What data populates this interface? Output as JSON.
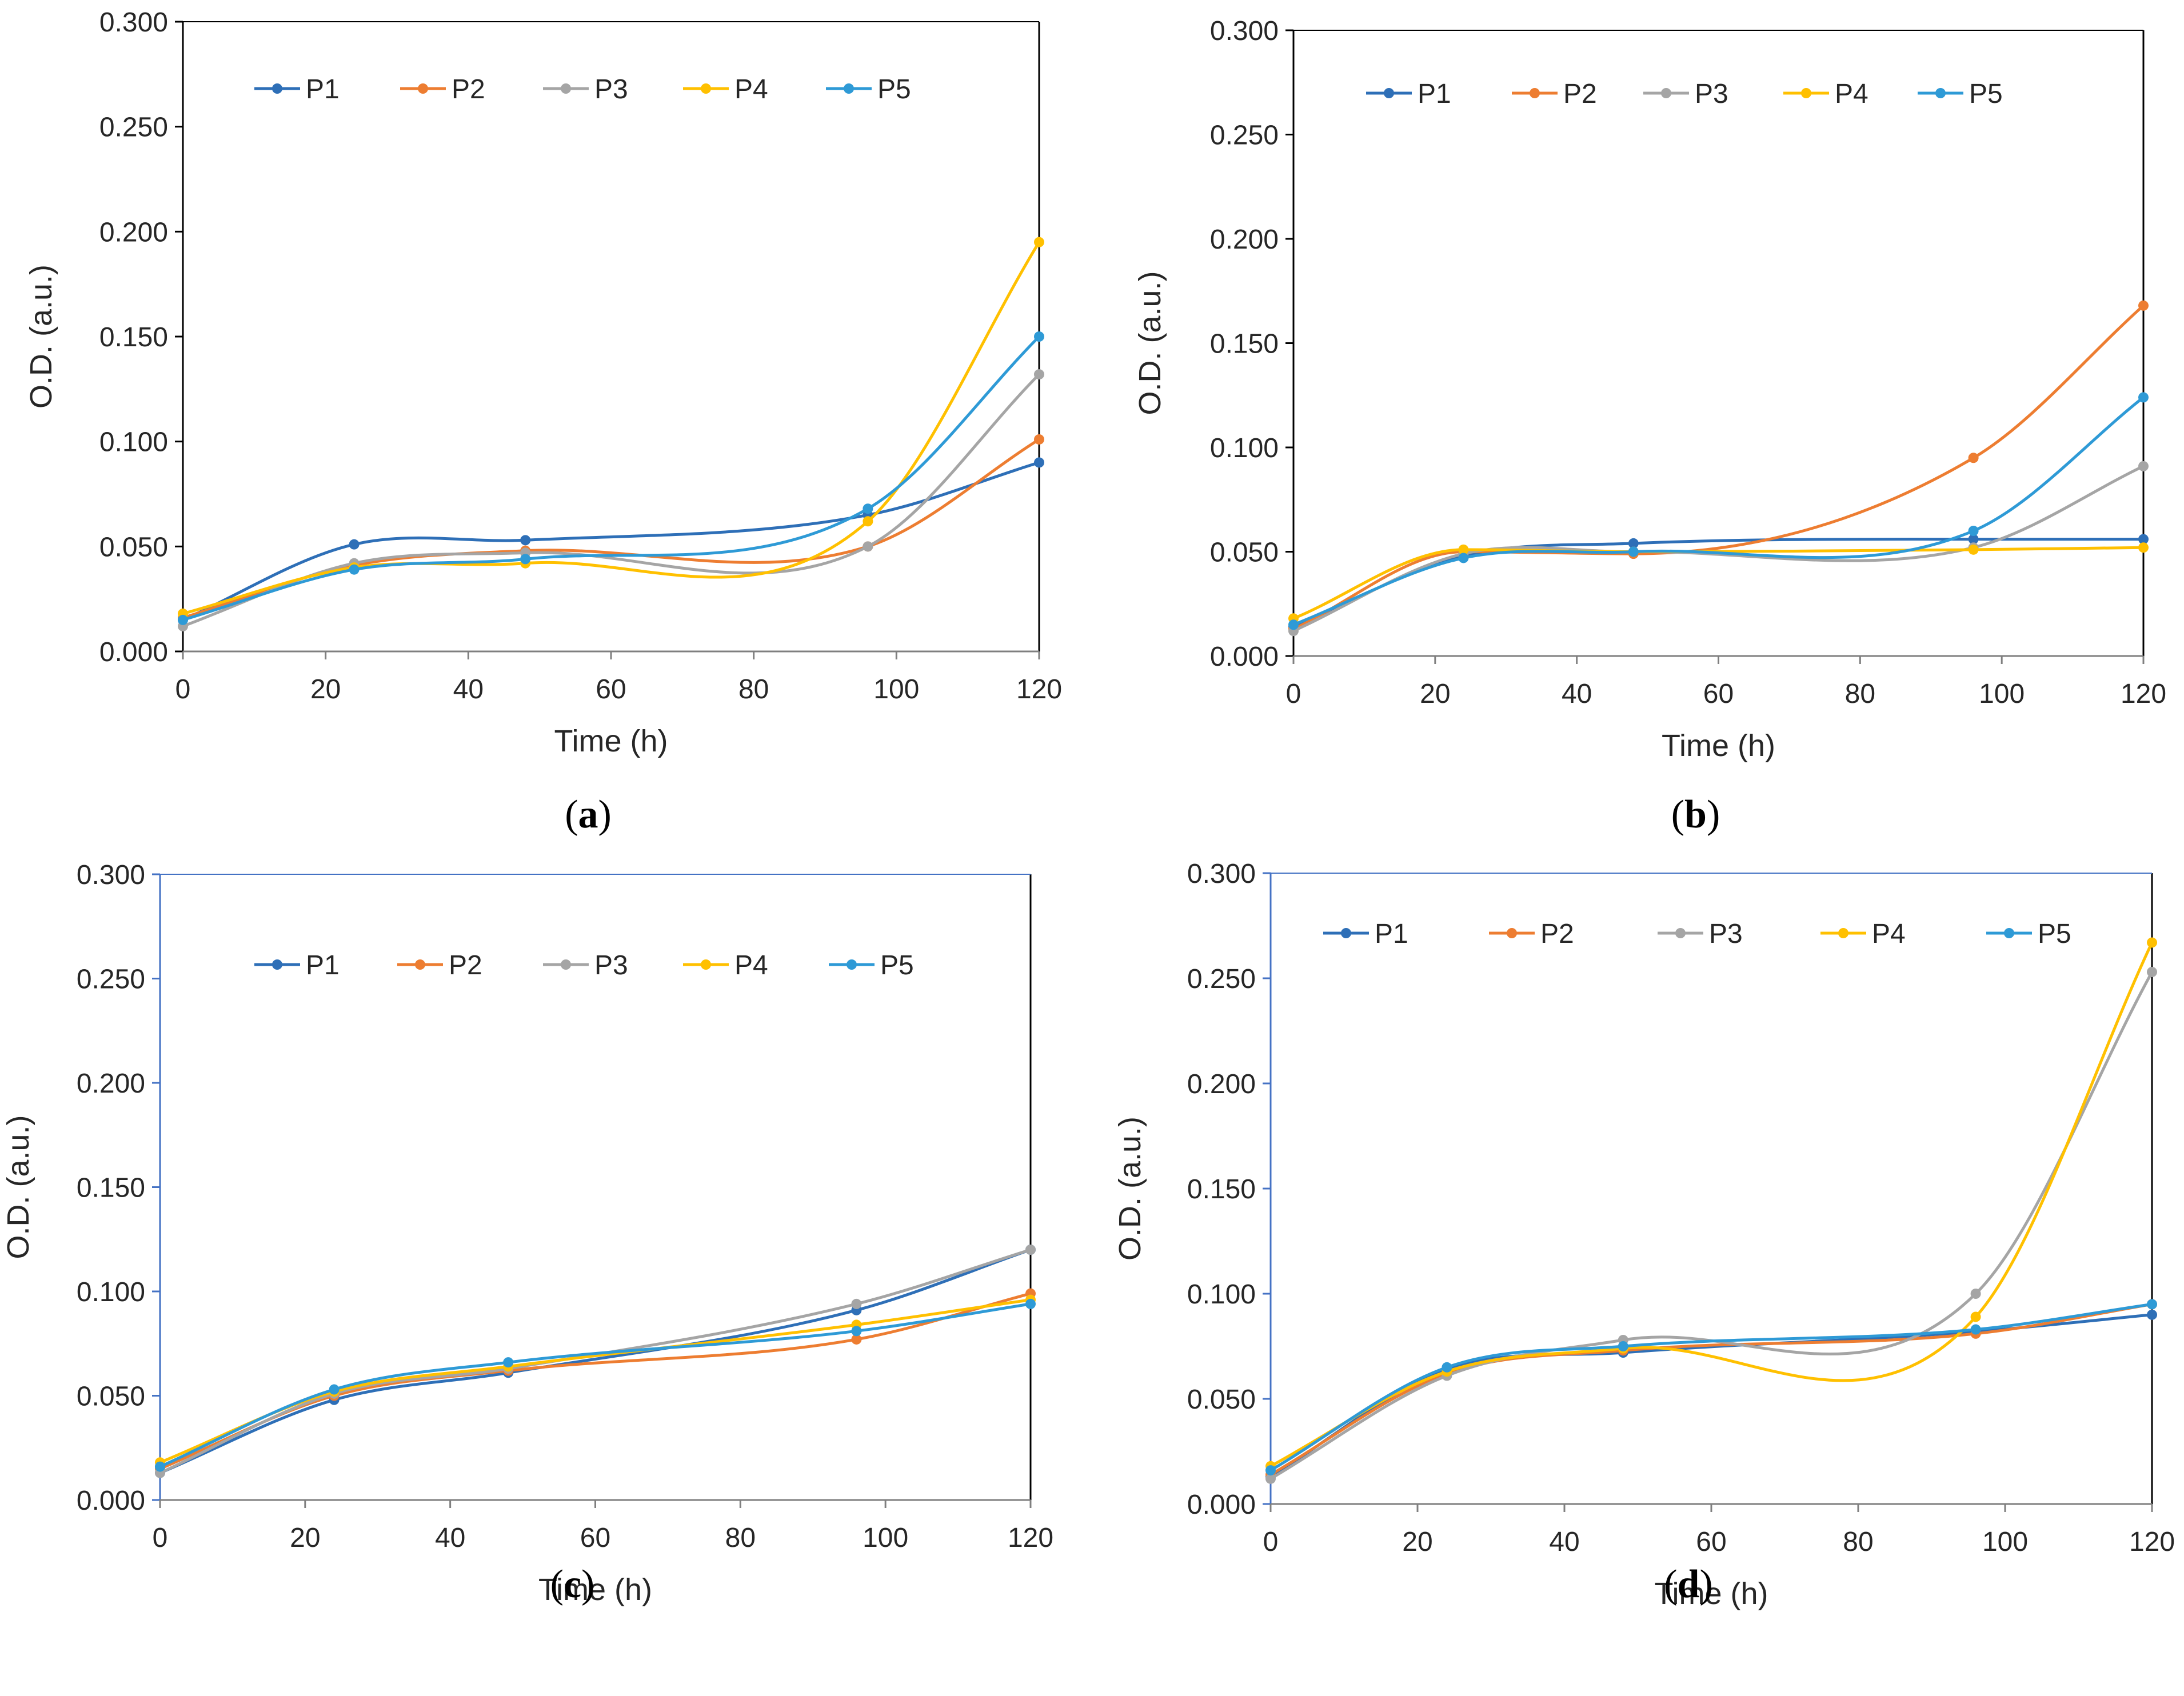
{
  "figure": {
    "series_colors": {
      "P1": "#2E6FB7",
      "P2": "#ED7D31",
      "P3": "#A5A5A5",
      "P4": "#FFC000",
      "P5": "#2E9AD6"
    },
    "axis_color_dark": "#000000",
    "axis_color_blue": "#4472C4",
    "gridline_color": "#7F7F7F"
  },
  "chart_data": [
    {
      "panel": "a",
      "label_open": "(",
      "label_letter": "a",
      "label_close": ")",
      "type": "line",
      "title": "",
      "xlabel": "Time (h)",
      "ylabel": "O.D. (a.u.)",
      "xlim": [
        0,
        120
      ],
      "ylim": [
        0,
        0.3
      ],
      "xticks": [
        0,
        20,
        40,
        60,
        80,
        100,
        120
      ],
      "xtick_labels": [
        "0",
        "20",
        "40",
        "60",
        "80",
        "100",
        "120"
      ],
      "yticks": [
        0,
        0.05,
        0.1,
        0.15,
        0.2,
        0.25,
        0.3
      ],
      "ytick_labels": [
        "0.000",
        "0.050",
        "0.100",
        "0.150",
        "0.200",
        "0.250",
        "0.300"
      ],
      "legend": [
        "P1",
        "P2",
        "P3",
        "P4",
        "P5"
      ],
      "legend_position": "top",
      "x": [
        0,
        24,
        48,
        96,
        120
      ],
      "series": [
        {
          "name": "P1",
          "values": [
            0.015,
            0.051,
            0.053,
            0.065,
            0.09
          ]
        },
        {
          "name": "P2",
          "values": [
            0.016,
            0.041,
            0.048,
            0.05,
            0.101
          ]
        },
        {
          "name": "P3",
          "values": [
            0.012,
            0.042,
            0.047,
            0.05,
            0.132
          ]
        },
        {
          "name": "P4",
          "values": [
            0.018,
            0.04,
            0.042,
            0.062,
            0.195
          ]
        },
        {
          "name": "P5",
          "values": [
            0.015,
            0.039,
            0.044,
            0.068,
            0.15
          ]
        }
      ]
    },
    {
      "panel": "b",
      "label_open": "(",
      "label_letter": "b",
      "label_close": ")",
      "type": "line",
      "title": "",
      "xlabel": "Time (h)",
      "ylabel": "O.D. (a.u.)",
      "xlim": [
        0,
        120
      ],
      "ylim": [
        0,
        0.3
      ],
      "xticks": [
        0,
        20,
        40,
        60,
        80,
        100,
        120
      ],
      "xtick_labels": [
        "0",
        "20",
        "40",
        "60",
        "80",
        "100",
        "120"
      ],
      "yticks": [
        0,
        0.05,
        0.1,
        0.15,
        0.2,
        0.25,
        0.3
      ],
      "ytick_labels": [
        "0.000",
        "0.050",
        "0.100",
        "0.150",
        "0.200",
        "0.250",
        "0.300"
      ],
      "legend": [
        "P1",
        "P2",
        "P3",
        "P4",
        "P5"
      ],
      "legend_position": "top",
      "x": [
        0,
        24,
        48,
        96,
        120
      ],
      "series": [
        {
          "name": "P1",
          "values": [
            0.014,
            0.048,
            0.054,
            0.056,
            0.056
          ]
        },
        {
          "name": "P2",
          "values": [
            0.013,
            0.05,
            0.049,
            0.095,
            0.168
          ]
        },
        {
          "name": "P3",
          "values": [
            0.012,
            0.049,
            0.05,
            0.052,
            0.091
          ]
        },
        {
          "name": "P4",
          "values": [
            0.018,
            0.051,
            0.05,
            0.051,
            0.052
          ]
        },
        {
          "name": "P5",
          "values": [
            0.015,
            0.047,
            0.05,
            0.06,
            0.124
          ]
        }
      ]
    },
    {
      "panel": "c",
      "label_open": "(",
      "label_letter": "c",
      "label_close": ")",
      "type": "line",
      "title": "",
      "xlabel": "Time (h)",
      "ylabel": "O.D. (a.u.)",
      "xlim": [
        0,
        120
      ],
      "ylim": [
        0,
        0.3
      ],
      "xticks": [
        0,
        20,
        40,
        60,
        80,
        100,
        120
      ],
      "xtick_labels": [
        "0",
        "20",
        "40",
        "60",
        "80",
        "100",
        "120"
      ],
      "yticks": [
        0,
        0.05,
        0.1,
        0.15,
        0.2,
        0.25,
        0.3
      ],
      "ytick_labels": [
        "0.000",
        "0.050",
        "0.100",
        "0.150",
        "0.200",
        "0.250",
        "0.300"
      ],
      "legend": [
        "P1",
        "P2",
        "P3",
        "P4",
        "P5"
      ],
      "legend_position": "top",
      "x": [
        0,
        24,
        48,
        96,
        120
      ],
      "series": [
        {
          "name": "P1",
          "values": [
            0.013,
            0.048,
            0.061,
            0.091,
            0.12
          ]
        },
        {
          "name": "P2",
          "values": [
            0.015,
            0.05,
            0.062,
            0.077,
            0.099
          ]
        },
        {
          "name": "P3",
          "values": [
            0.013,
            0.051,
            0.063,
            0.094,
            0.12
          ]
        },
        {
          "name": "P4",
          "values": [
            0.018,
            0.052,
            0.064,
            0.084,
            0.096
          ]
        },
        {
          "name": "P5",
          "values": [
            0.016,
            0.053,
            0.066,
            0.081,
            0.094
          ]
        }
      ]
    },
    {
      "panel": "d",
      "label_open": "(",
      "label_letter": "d",
      "label_close": ")",
      "type": "line",
      "title": "",
      "xlabel": "Time (h)",
      "ylabel": "O.D. (a.u.)",
      "xlim": [
        0,
        120
      ],
      "ylim": [
        0,
        0.3
      ],
      "xticks": [
        0,
        20,
        40,
        60,
        80,
        100,
        120
      ],
      "xtick_labels": [
        "0",
        "20",
        "40",
        "60",
        "80",
        "100",
        "120"
      ],
      "yticks": [
        0,
        0.05,
        0.1,
        0.15,
        0.2,
        0.25,
        0.3
      ],
      "ytick_labels": [
        "0.000",
        "0.050",
        "0.100",
        "0.150",
        "0.200",
        "0.250",
        "0.300"
      ],
      "legend": [
        "P1",
        "P2",
        "P3",
        "P4",
        "P5"
      ],
      "legend_position": "top",
      "x": [
        0,
        24,
        48,
        96,
        120
      ],
      "series": [
        {
          "name": "P1",
          "values": [
            0.013,
            0.064,
            0.072,
            0.082,
            0.09
          ]
        },
        {
          "name": "P2",
          "values": [
            0.014,
            0.062,
            0.073,
            0.081,
            0.095
          ]
        },
        {
          "name": "P3",
          "values": [
            0.012,
            0.061,
            0.078,
            0.1,
            0.253
          ]
        },
        {
          "name": "P4",
          "values": [
            0.018,
            0.063,
            0.074,
            0.089,
            0.267
          ]
        },
        {
          "name": "P5",
          "values": [
            0.016,
            0.065,
            0.075,
            0.083,
            0.095
          ]
        }
      ]
    }
  ]
}
